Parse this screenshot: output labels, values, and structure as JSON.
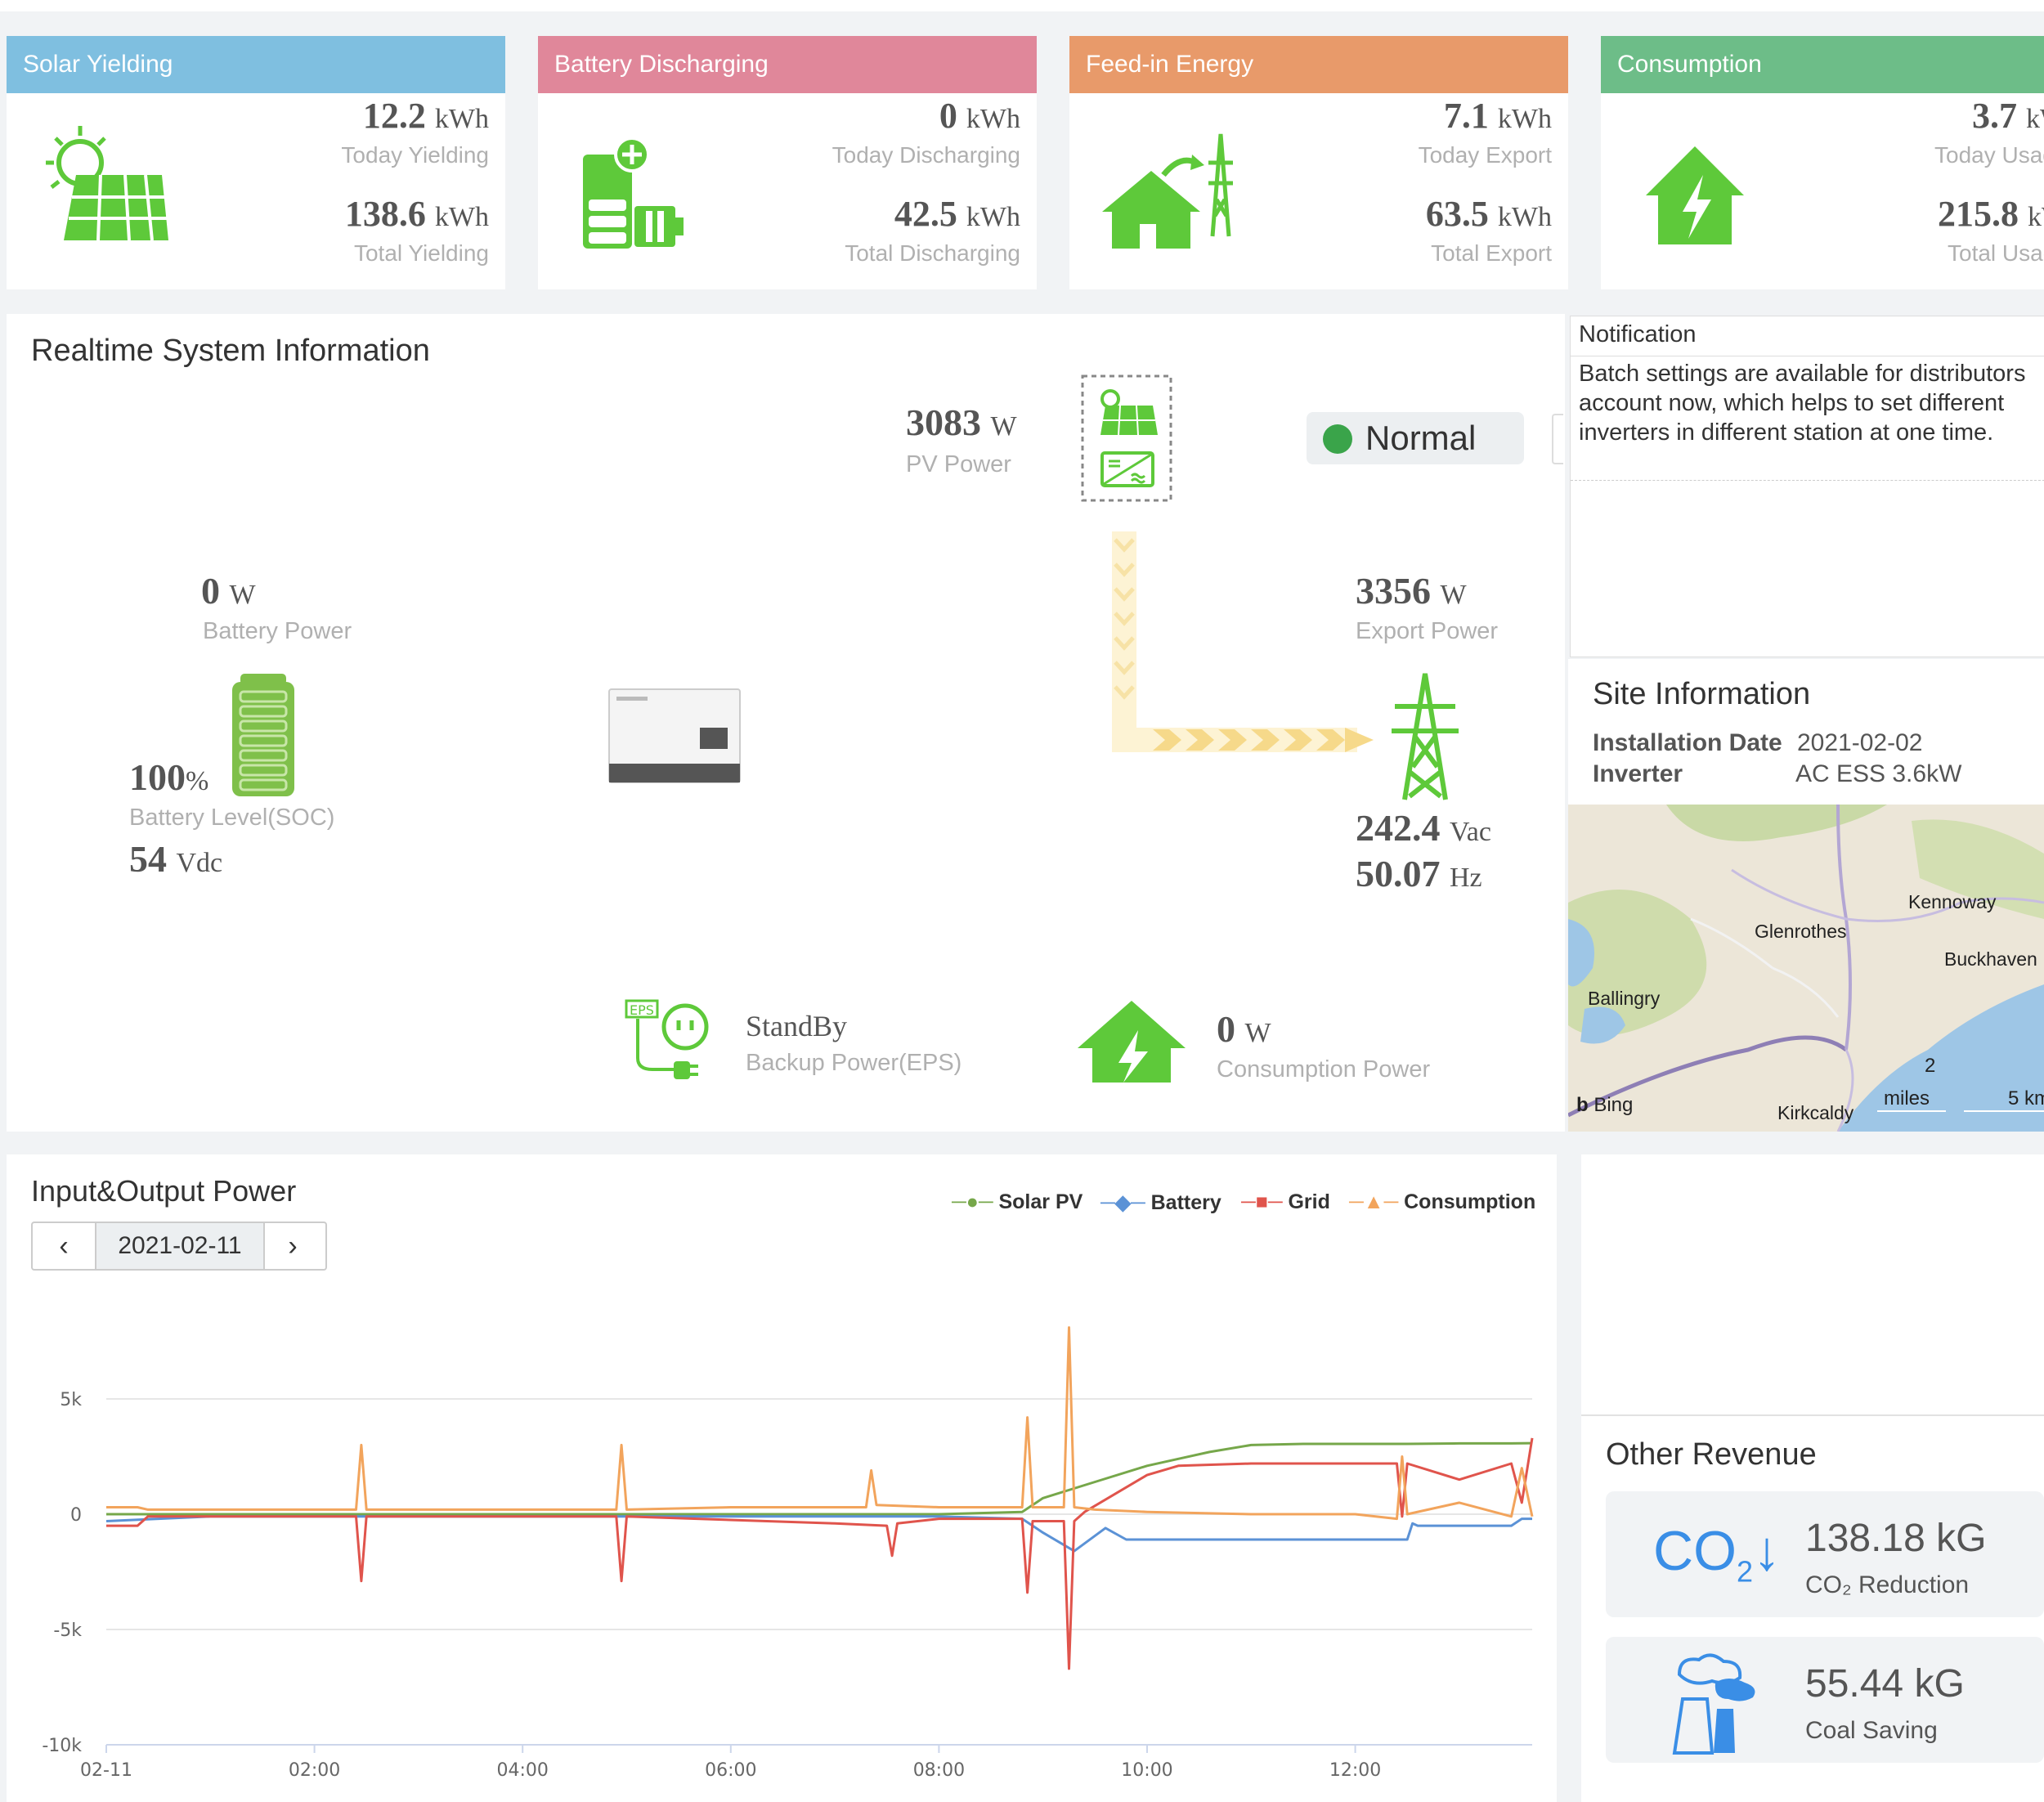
{
  "cards": [
    {
      "title": "Solar Yielding",
      "color": "#7fbfe0",
      "v1": "12.2",
      "u1": "kWh",
      "l1": "Today Yielding",
      "v2": "138.6",
      "u2": "kWh",
      "l2": "Total Yielding"
    },
    {
      "title": "Battery Discharging",
      "color": "#e0879a",
      "v1": "0",
      "u1": "kWh",
      "l1": "Today Discharging",
      "v2": "42.5",
      "u2": "kWh",
      "l2": "Total Discharging"
    },
    {
      "title": "Feed-in Energy",
      "color": "#e89a6a",
      "v1": "7.1",
      "u1": "kWh",
      "l1": "Today Export",
      "v2": "63.5",
      "u2": "kWh",
      "l2": "Total Export"
    },
    {
      "title": "Consumption",
      "color": "#6dbd88",
      "v1": "3.7",
      "u1": "kWh",
      "l1": "Today Usage",
      "v2": "215.8",
      "u2": "kWh",
      "l2": "Total Usage"
    }
  ],
  "realtime": {
    "title": "Realtime System Information",
    "pv_power": "3083",
    "pv_unit": "W",
    "pv_label": "PV Power",
    "status": "Normal",
    "battery_power": "0",
    "battery_unit": "W",
    "battery_label": "Battery Power",
    "soc": "100",
    "soc_unit": "%",
    "soc_label": "Battery Level(SOC)",
    "battery_voltage": "54",
    "battery_voltage_unit": "Vdc",
    "export_power": "3356",
    "export_unit": "W",
    "export_label": "Export Power",
    "grid_voltage": "242.4",
    "grid_voltage_unit": "Vac",
    "grid_freq": "50.07",
    "grid_freq_unit": "Hz",
    "eps_status": "StandBy",
    "eps_label": "Backup Power(EPS)",
    "consumption_power": "0",
    "consumption_unit": "W",
    "consumption_label": "Consumption Power",
    "battery_fill_level": 1.0
  },
  "notification": {
    "title": "Notification",
    "body": "Batch settings are available for distributors account now, which helps to set different inverters in different station at one time."
  },
  "site": {
    "title": "Site Information",
    "install_label": "Installation Date",
    "install_value": "2021-02-02",
    "inverter_label": "Inverter",
    "inverter_value": "AC ESS 3.6kW"
  },
  "map": {
    "places": [
      "Kennoway",
      "Glenrothes",
      "Buckhaven",
      "Ballingry",
      "Kirkcaldy"
    ],
    "scale_miles_value": "2",
    "scale_miles_unit": "miles",
    "scale_km": "5 km",
    "provider": "Bing"
  },
  "io_chart": {
    "title": "Input&Output Power",
    "date": "2021-02-11",
    "prev_icon": "chevron-left-icon",
    "next_icon": "chevron-right-icon"
  },
  "revenue": {
    "title": "Other Revenue",
    "co2_value": "138.18 kG",
    "co2_label": "CO₂ Reduction",
    "coal_value": "55.44 kG",
    "coal_label": "Coal Saving"
  },
  "colors": {
    "green": "#5ec93a",
    "solar": "#76a74a",
    "battery": "#5b92d6",
    "grid": "#e0544c",
    "consumption": "#f2a45c"
  },
  "chart_data": {
    "type": "line",
    "title": "",
    "xlabel": "",
    "ylabel": "",
    "x_ticks": [
      "02-11",
      "02:00",
      "04:00",
      "06:00",
      "08:00",
      "10:00",
      "12:00"
    ],
    "y_ticks": [
      "5k",
      "0",
      "-5k",
      "-10k"
    ],
    "ylim": [
      -10000,
      10000
    ],
    "xlim_hours": [
      0,
      13.7
    ],
    "legend": "top-right",
    "series": [
      {
        "name": "Solar PV",
        "color": "#76a74a",
        "x": [
          0,
          1,
          2,
          3,
          4,
          5,
          6,
          7,
          8,
          8.8,
          9,
          9.5,
          10,
          10.3,
          10.6,
          11,
          11.5,
          12,
          12.5,
          13,
          13.5,
          13.7
        ],
        "y": [
          0,
          0,
          0,
          0,
          0,
          0,
          0,
          0,
          0,
          100,
          700,
          1400,
          2100,
          2400,
          2700,
          3000,
          3050,
          3050,
          3050,
          3070,
          3070,
          3080
        ]
      },
      {
        "name": "Battery",
        "color": "#5b92d6",
        "x": [
          0,
          1,
          2,
          3,
          4,
          5,
          6,
          7,
          8,
          8.8,
          9,
          9.3,
          9.6,
          9.8,
          10,
          11,
          12,
          12.5,
          12.55,
          12.6,
          13,
          13.5,
          13.6,
          13.7
        ],
        "y": [
          -300,
          -100,
          -100,
          -100,
          -100,
          -100,
          -100,
          -100,
          -100,
          -200,
          -800,
          -1600,
          -600,
          -1100,
          -1100,
          -1100,
          -1100,
          -1100,
          -400,
          -500,
          -500,
          -500,
          -200,
          -200
        ]
      },
      {
        "name": "Grid",
        "color": "#e0544c",
        "x": [
          0,
          0.3,
          0.4,
          2.4,
          2.45,
          2.5,
          4.9,
          4.95,
          5,
          7,
          7.5,
          7.55,
          7.6,
          8,
          8.8,
          8.85,
          8.9,
          9.2,
          9.25,
          9.3,
          9.4,
          10,
          10.3,
          11,
          12,
          12.4,
          12.45,
          12.5,
          13,
          13.5,
          13.6,
          13.7
        ],
        "y": [
          -500,
          -500,
          -100,
          -100,
          -2900,
          -100,
          -100,
          -2900,
          -100,
          -400,
          -500,
          -1800,
          -400,
          -200,
          -200,
          -3400,
          -300,
          -300,
          -6700,
          -300,
          100,
          1700,
          2100,
          2200,
          2200,
          2200,
          -100,
          2200,
          1500,
          2200,
          500,
          3300
        ]
      },
      {
        "name": "Consumption",
        "color": "#f2a45c",
        "x": [
          0,
          0.3,
          0.4,
          2.4,
          2.45,
          2.5,
          4.9,
          4.95,
          5,
          6,
          7.3,
          7.35,
          7.4,
          8,
          8.8,
          8.85,
          8.9,
          9.2,
          9.25,
          9.3,
          9.5,
          10,
          11,
          12,
          12.4,
          12.45,
          12.5,
          13,
          13.5,
          13.6,
          13.7
        ],
        "y": [
          300,
          300,
          200,
          200,
          3000,
          200,
          200,
          3000,
          200,
          300,
          300,
          1900,
          400,
          300,
          300,
          4200,
          300,
          300,
          8100,
          300,
          200,
          100,
          0,
          0,
          -200,
          2500,
          0,
          500,
          -100,
          2000,
          -100
        ]
      }
    ]
  }
}
